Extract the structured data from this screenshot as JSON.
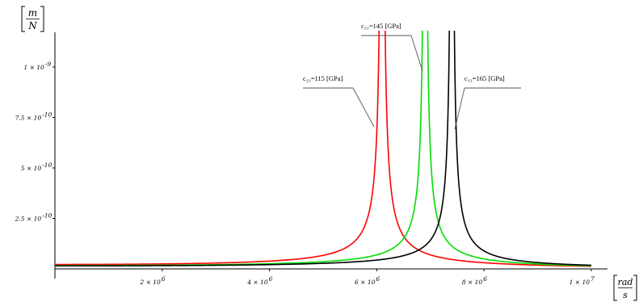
{
  "chart_data": {
    "type": "line",
    "title": "",
    "xlim": [
      0,
      10000000
    ],
    "ylim": [
      0,
      1.18e-09
    ],
    "grid": false,
    "x_ticks": [
      {
        "value": 2000000,
        "label": "2 × 10",
        "exp": "6"
      },
      {
        "value": 4000000,
        "label": "4 × 10",
        "exp": "6"
      },
      {
        "value": 6000000,
        "label": "6 × 10",
        "exp": "6"
      },
      {
        "value": 8000000,
        "label": "8 × 10",
        "exp": "6"
      },
      {
        "value": 10000000,
        "label": "1 × 10",
        "exp": "7"
      }
    ],
    "y_ticks": [
      {
        "value": 2.5e-10,
        "label": "2.5 × 10",
        "exp": "-10"
      },
      {
        "value": 5e-10,
        "label": "5 × 10",
        "exp": "-10"
      },
      {
        "value": 7.5e-10,
        "label": "7.5 × 10",
        "exp": "-10"
      },
      {
        "value": 1e-09,
        "label": "1 × 10",
        "exp": "-9"
      }
    ],
    "xlabel": {
      "num": "rad",
      "den": "s"
    },
    "ylabel": {
      "num": "m",
      "den": "N"
    },
    "series": [
      {
        "name": "c₃₃=115 [GPa]",
        "color": "#ff0000",
        "resonance": 6100000,
        "y0": 2.2e-11
      },
      {
        "name": "c₃₃=145 [GPa]",
        "color": "#00dd00",
        "resonance": 6900000,
        "y0": 1.7e-11
      },
      {
        "name": "c₃₃=165 [GPa]",
        "color": "#000000",
        "resonance": 7400000,
        "y0": 1.5e-11
      }
    ],
    "annotations": [
      {
        "text": "c₃₃=115 [GPa]"
      },
      {
        "text": "c₃₃=145 [GPa]"
      },
      {
        "text": "c₃₃=165 [GPa]"
      }
    ]
  }
}
